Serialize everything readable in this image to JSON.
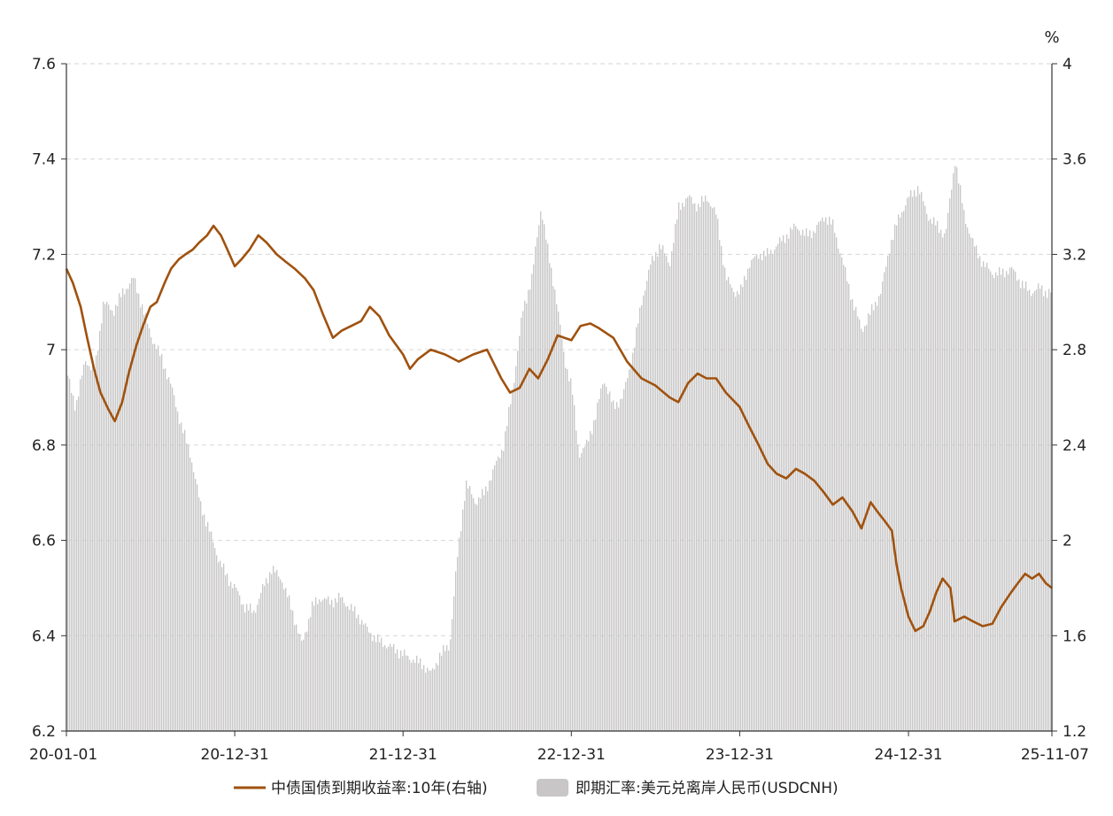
{
  "chart_data": {
    "type": "line",
    "axes": {
      "left": {
        "ylim": [
          6.2,
          7.6
        ],
        "ticks": [
          "7.6",
          "7.4",
          "7.2",
          "7",
          "6.8",
          "6.6",
          "6.4",
          "6.2"
        ]
      },
      "right": {
        "ylim": [
          1.2,
          4.0
        ],
        "unit": "%",
        "ticks": [
          "4",
          "3.6",
          "3.2",
          "2.8",
          "2.4",
          "2",
          "1.6",
          "1.2"
        ]
      },
      "x": {
        "range": [
          "2020-01-01",
          "2025-11-07"
        ],
        "ticks": [
          "20-01-01",
          "20-12-31",
          "21-12-31",
          "22-12-31",
          "23-12-31",
          "24-12-31",
          "25-11-07"
        ],
        "tick_dates": [
          "2020-01-01",
          "2020-12-31",
          "2021-12-31",
          "2022-12-31",
          "2023-12-31",
          "2024-12-31",
          "2025-11-07"
        ]
      },
      "grid": "horizontal dashed"
    },
    "legend": {
      "placement": "bottom-center",
      "items": [
        {
          "label": "中债国债到期收益率:10年(右轴)",
          "color": "#A0520F"
        },
        {
          "label": "即期汇率:美元兑离岸人民币(USDCNH)",
          "color": "#C8C6C6"
        }
      ]
    },
    "series": [
      {
        "name": "中债国债到期收益率:10年(右轴)",
        "type": "line",
        "axis": "right",
        "color": "#A0520F",
        "points": [
          [
            "2020-01-01",
            3.14
          ],
          [
            "2020-01-15",
            3.08
          ],
          [
            "2020-02-01",
            2.98
          ],
          [
            "2020-02-15",
            2.85
          ],
          [
            "2020-03-01",
            2.72
          ],
          [
            "2020-03-15",
            2.62
          ],
          [
            "2020-04-01",
            2.55
          ],
          [
            "2020-04-15",
            2.5
          ],
          [
            "2020-05-01",
            2.58
          ],
          [
            "2020-05-15",
            2.7
          ],
          [
            "2020-06-01",
            2.82
          ],
          [
            "2020-06-15",
            2.9
          ],
          [
            "2020-07-01",
            2.98
          ],
          [
            "2020-07-15",
            3.0
          ],
          [
            "2020-08-01",
            3.08
          ],
          [
            "2020-08-15",
            3.14
          ],
          [
            "2020-09-01",
            3.18
          ],
          [
            "2020-09-15",
            3.2
          ],
          [
            "2020-10-01",
            3.22
          ],
          [
            "2020-10-15",
            3.25
          ],
          [
            "2020-11-01",
            3.28
          ],
          [
            "2020-11-15",
            3.32
          ],
          [
            "2020-12-01",
            3.28
          ],
          [
            "2020-12-15",
            3.22
          ],
          [
            "2020-12-31",
            3.15
          ],
          [
            "2021-01-15",
            3.18
          ],
          [
            "2021-02-01",
            3.22
          ],
          [
            "2021-02-20",
            3.28
          ],
          [
            "2021-03-10",
            3.25
          ],
          [
            "2021-04-01",
            3.2
          ],
          [
            "2021-04-20",
            3.17
          ],
          [
            "2021-05-10",
            3.14
          ],
          [
            "2021-06-01",
            3.1
          ],
          [
            "2021-06-20",
            3.05
          ],
          [
            "2021-07-10",
            2.95
          ],
          [
            "2021-08-01",
            2.85
          ],
          [
            "2021-08-20",
            2.88
          ],
          [
            "2021-09-10",
            2.9
          ],
          [
            "2021-10-01",
            2.92
          ],
          [
            "2021-10-20",
            2.98
          ],
          [
            "2021-11-10",
            2.94
          ],
          [
            "2021-12-01",
            2.86
          ],
          [
            "2021-12-31",
            2.78
          ],
          [
            "2022-01-15",
            2.72
          ],
          [
            "2022-02-01",
            2.76
          ],
          [
            "2022-03-01",
            2.8
          ],
          [
            "2022-04-01",
            2.78
          ],
          [
            "2022-05-01",
            2.75
          ],
          [
            "2022-06-01",
            2.78
          ],
          [
            "2022-07-01",
            2.8
          ],
          [
            "2022-08-01",
            2.68
          ],
          [
            "2022-08-20",
            2.62
          ],
          [
            "2022-09-10",
            2.64
          ],
          [
            "2022-10-01",
            2.72
          ],
          [
            "2022-10-20",
            2.68
          ],
          [
            "2022-11-10",
            2.76
          ],
          [
            "2022-12-01",
            2.86
          ],
          [
            "2022-12-31",
            2.84
          ],
          [
            "2023-01-20",
            2.9
          ],
          [
            "2023-02-10",
            2.91
          ],
          [
            "2023-03-01",
            2.89
          ],
          [
            "2023-04-01",
            2.85
          ],
          [
            "2023-05-01",
            2.75
          ],
          [
            "2023-06-01",
            2.68
          ],
          [
            "2023-07-01",
            2.65
          ],
          [
            "2023-08-01",
            2.6
          ],
          [
            "2023-08-20",
            2.58
          ],
          [
            "2023-09-10",
            2.66
          ],
          [
            "2023-10-01",
            2.7
          ],
          [
            "2023-10-20",
            2.68
          ],
          [
            "2023-11-10",
            2.68
          ],
          [
            "2023-12-01",
            2.62
          ],
          [
            "2023-12-31",
            2.56
          ],
          [
            "2024-01-20",
            2.48
          ],
          [
            "2024-02-10",
            2.4
          ],
          [
            "2024-03-01",
            2.32
          ],
          [
            "2024-03-20",
            2.28
          ],
          [
            "2024-04-10",
            2.26
          ],
          [
            "2024-05-01",
            2.3
          ],
          [
            "2024-05-20",
            2.28
          ],
          [
            "2024-06-10",
            2.25
          ],
          [
            "2024-07-01",
            2.2
          ],
          [
            "2024-07-20",
            2.15
          ],
          [
            "2024-08-10",
            2.18
          ],
          [
            "2024-09-01",
            2.12
          ],
          [
            "2024-09-20",
            2.05
          ],
          [
            "2024-10-10",
            2.16
          ],
          [
            "2024-10-25",
            2.12
          ],
          [
            "2024-11-10",
            2.08
          ],
          [
            "2024-11-25",
            2.04
          ],
          [
            "2024-12-05",
            1.9
          ],
          [
            "2024-12-15",
            1.8
          ],
          [
            "2024-12-31",
            1.68
          ],
          [
            "2025-01-15",
            1.62
          ],
          [
            "2025-02-01",
            1.64
          ],
          [
            "2025-02-15",
            1.7
          ],
          [
            "2025-03-01",
            1.78
          ],
          [
            "2025-03-15",
            1.84
          ],
          [
            "2025-04-01",
            1.8
          ],
          [
            "2025-04-10",
            1.66
          ],
          [
            "2025-05-01",
            1.68
          ],
          [
            "2025-05-20",
            1.66
          ],
          [
            "2025-06-10",
            1.64
          ],
          [
            "2025-07-01",
            1.65
          ],
          [
            "2025-07-20",
            1.72
          ],
          [
            "2025-08-10",
            1.78
          ],
          [
            "2025-08-25",
            1.82
          ],
          [
            "2025-09-10",
            1.86
          ],
          [
            "2025-09-25",
            1.84
          ],
          [
            "2025-10-10",
            1.86
          ],
          [
            "2025-10-25",
            1.82
          ],
          [
            "2025-11-07",
            1.8
          ]
        ]
      },
      {
        "name": "即期汇率:美元兑离岸人民币(USDCNH)",
        "type": "area",
        "axis": "left",
        "color": "#C8C6C6",
        "points": [
          [
            "2020-01-01",
            6.95
          ],
          [
            "2020-01-20",
            6.88
          ],
          [
            "2020-02-10",
            6.98
          ],
          [
            "2020-03-01",
            6.95
          ],
          [
            "2020-03-20",
            7.1
          ],
          [
            "2020-04-10",
            7.08
          ],
          [
            "2020-05-01",
            7.12
          ],
          [
            "2020-05-25",
            7.15
          ],
          [
            "2020-06-15",
            7.08
          ],
          [
            "2020-07-05",
            7.02
          ],
          [
            "2020-07-25",
            6.98
          ],
          [
            "2020-08-15",
            6.92
          ],
          [
            "2020-09-05",
            6.84
          ],
          [
            "2020-09-25",
            6.78
          ],
          [
            "2020-10-15",
            6.68
          ],
          [
            "2020-11-05",
            6.62
          ],
          [
            "2020-11-25",
            6.56
          ],
          [
            "2020-12-15",
            6.52
          ],
          [
            "2020-12-31",
            6.5
          ],
          [
            "2021-01-20",
            6.46
          ],
          [
            "2021-02-10",
            6.45
          ],
          [
            "2021-03-01",
            6.5
          ],
          [
            "2021-03-20",
            6.54
          ],
          [
            "2021-04-10",
            6.52
          ],
          [
            "2021-05-01",
            6.46
          ],
          [
            "2021-05-25",
            6.38
          ],
          [
            "2021-06-15",
            6.46
          ],
          [
            "2021-07-05",
            6.48
          ],
          [
            "2021-07-25",
            6.47
          ],
          [
            "2021-08-15",
            6.48
          ],
          [
            "2021-09-05",
            6.46
          ],
          [
            "2021-09-25",
            6.44
          ],
          [
            "2021-10-15",
            6.41
          ],
          [
            "2021-11-05",
            6.39
          ],
          [
            "2021-11-25",
            6.38
          ],
          [
            "2021-12-15",
            6.37
          ],
          [
            "2021-12-31",
            6.36
          ],
          [
            "2022-01-20",
            6.35
          ],
          [
            "2022-02-10",
            6.34
          ],
          [
            "2022-03-01",
            6.32
          ],
          [
            "2022-03-20",
            6.36
          ],
          [
            "2022-04-10",
            6.38
          ],
          [
            "2022-04-25",
            6.55
          ],
          [
            "2022-05-15",
            6.72
          ],
          [
            "2022-06-05",
            6.68
          ],
          [
            "2022-06-25",
            6.7
          ],
          [
            "2022-07-15",
            6.75
          ],
          [
            "2022-08-05",
            6.8
          ],
          [
            "2022-08-25",
            6.92
          ],
          [
            "2022-09-15",
            7.08
          ],
          [
            "2022-10-05",
            7.15
          ],
          [
            "2022-10-25",
            7.3
          ],
          [
            "2022-11-10",
            7.2
          ],
          [
            "2022-11-25",
            7.12
          ],
          [
            "2022-12-15",
            6.98
          ],
          [
            "2022-12-31",
            6.92
          ],
          [
            "2023-01-15",
            6.78
          ],
          [
            "2023-02-01",
            6.8
          ],
          [
            "2023-02-20",
            6.86
          ],
          [
            "2023-03-10",
            6.94
          ],
          [
            "2023-03-31",
            6.88
          ],
          [
            "2023-04-20",
            6.9
          ],
          [
            "2023-05-10",
            6.98
          ],
          [
            "2023-05-31",
            7.1
          ],
          [
            "2023-06-20",
            7.18
          ],
          [
            "2023-07-10",
            7.22
          ],
          [
            "2023-07-31",
            7.18
          ],
          [
            "2023-08-20",
            7.3
          ],
          [
            "2023-09-10",
            7.32
          ],
          [
            "2023-09-30",
            7.3
          ],
          [
            "2023-10-20",
            7.32
          ],
          [
            "2023-11-10",
            7.28
          ],
          [
            "2023-11-30",
            7.15
          ],
          [
            "2023-12-20",
            7.12
          ],
          [
            "2023-12-31",
            7.12
          ],
          [
            "2024-01-20",
            7.18
          ],
          [
            "2024-02-10",
            7.2
          ],
          [
            "2024-03-01",
            7.2
          ],
          [
            "2024-03-20",
            7.22
          ],
          [
            "2024-04-10",
            7.24
          ],
          [
            "2024-04-30",
            7.26
          ],
          [
            "2024-05-20",
            7.24
          ],
          [
            "2024-06-10",
            7.25
          ],
          [
            "2024-06-30",
            7.28
          ],
          [
            "2024-07-20",
            7.26
          ],
          [
            "2024-08-10",
            7.18
          ],
          [
            "2024-08-31",
            7.1
          ],
          [
            "2024-09-20",
            7.04
          ],
          [
            "2024-10-10",
            7.08
          ],
          [
            "2024-10-31",
            7.12
          ],
          [
            "2024-11-20",
            7.22
          ],
          [
            "2024-12-10",
            7.28
          ],
          [
            "2024-12-31",
            7.32
          ],
          [
            "2025-01-20",
            7.34
          ],
          [
            "2025-02-10",
            7.28
          ],
          [
            "2025-03-01",
            7.26
          ],
          [
            "2025-03-20",
            7.24
          ],
          [
            "2025-04-10",
            7.4
          ],
          [
            "2025-04-30",
            7.28
          ],
          [
            "2025-05-20",
            7.22
          ],
          [
            "2025-06-10",
            7.18
          ],
          [
            "2025-06-30",
            7.16
          ],
          [
            "2025-07-20",
            7.16
          ],
          [
            "2025-08-10",
            7.17
          ],
          [
            "2025-08-31",
            7.14
          ],
          [
            "2025-09-20",
            7.12
          ],
          [
            "2025-10-10",
            7.13
          ],
          [
            "2025-10-25",
            7.12
          ],
          [
            "2025-11-07",
            7.12
          ]
        ]
      }
    ]
  }
}
